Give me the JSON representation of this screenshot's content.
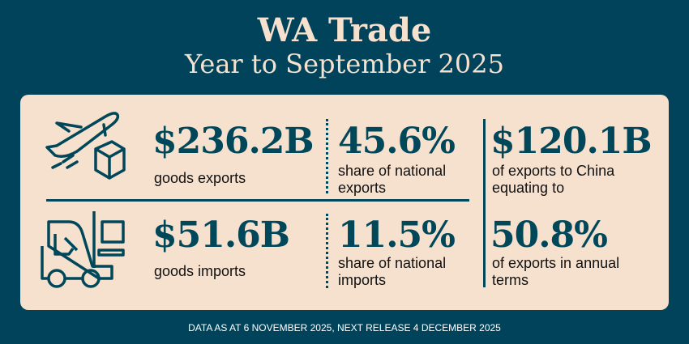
{
  "title": "WA Trade",
  "subtitle": "Year to September 2025",
  "exports": {
    "value": "$236.2B",
    "label": "goods exports",
    "share": "45.6%",
    "share_label": "share of national exports",
    "icon": "plane-box-icon"
  },
  "imports": {
    "value": "$51.6B",
    "label": "goods imports",
    "share": "11.5%",
    "share_label": "share of national imports",
    "icon": "forklift-icon"
  },
  "china": {
    "value": "$120.1B",
    "label": "of exports to China equating to",
    "pct": "50.8%",
    "pct_label": "of exports in annual terms"
  },
  "footer": "DATA AS AT 6 NOVEMBER 2025, NEXT RELEASE 4 DECEMBER 2025",
  "colors": {
    "background": "#00435a",
    "card": "#f6e1cf",
    "accent": "#00475a"
  }
}
